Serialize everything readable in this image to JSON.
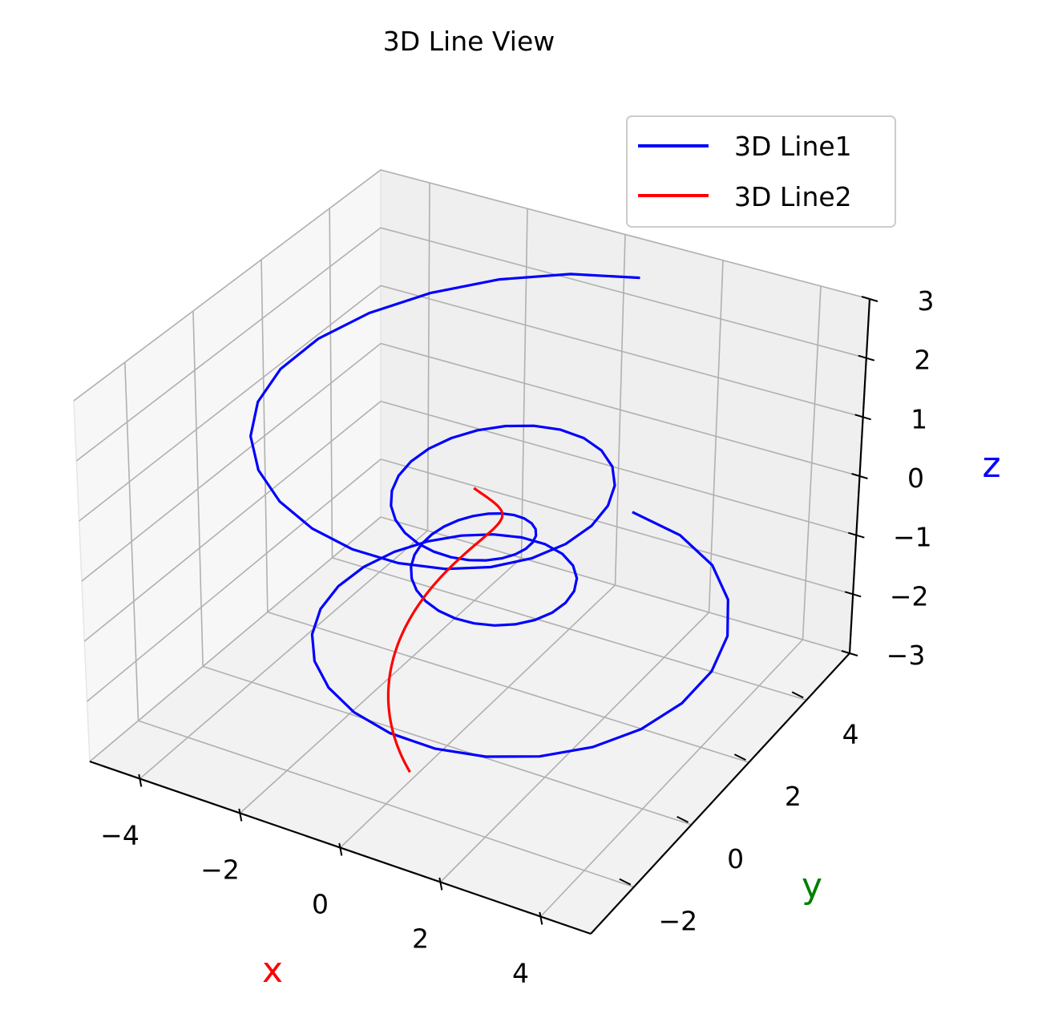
{
  "chart_data": {
    "type": "line",
    "title": "3D Line View",
    "xlabel": "x",
    "ylabel": "y",
    "zlabel": "z",
    "xlabel_color": "#ff0000",
    "ylabel_color": "#008000",
    "zlabel_color": "#0000ff",
    "xlim": [
      -5,
      5
    ],
    "ylim": [
      -3.5,
      5.5
    ],
    "zlim": [
      -3,
      3
    ],
    "x_ticks": [
      -4,
      -2,
      0,
      2,
      4
    ],
    "y_ticks": [
      -2,
      0,
      2,
      4
    ],
    "z_ticks": [
      -3,
      -2,
      -1,
      0,
      1,
      2,
      3
    ],
    "x_tick_labels": [
      "−4",
      "−2",
      "0",
      "2",
      "4"
    ],
    "y_tick_labels": [
      "−2",
      "0",
      "2",
      "4"
    ],
    "z_tick_labels": [
      "−3",
      "−2",
      "−1",
      "0",
      "1",
      "2",
      "3"
    ],
    "grid": true,
    "legend_position": "top-right",
    "series": [
      {
        "name": "3D Line1",
        "color": "#0000ff",
        "kind": "spiral",
        "points": 100,
        "theta_range_turns": 4,
        "z_range": [
          -2,
          2
        ],
        "radius_formula": "z^2 + 1",
        "y_offset": 1
      },
      {
        "name": "3D Line2",
        "color": "#ff0000",
        "kind": "sine",
        "points": 100,
        "z_range": [
          -3,
          2
        ],
        "x_formula": "sin(z)",
        "y_formula": "cos(z)"
      }
    ]
  }
}
